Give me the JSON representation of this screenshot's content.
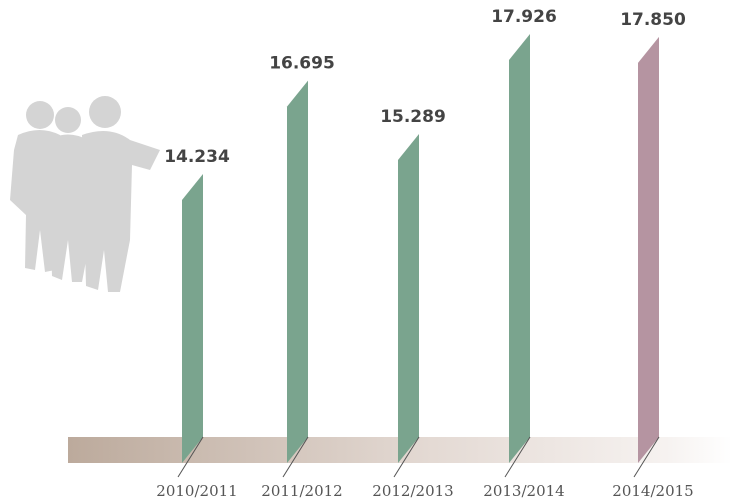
{
  "chart_data": {
    "type": "bar",
    "categories": [
      "2010/2011",
      "2011/2012",
      "2012/2013",
      "2013/2014",
      "2014/2015"
    ],
    "values": [
      14234,
      16695,
      15289,
      17926,
      17850
    ],
    "value_labels": [
      "14.234",
      "16.695",
      "15.289",
      "17.926",
      "17.850"
    ],
    "colors": [
      "#7aa48e",
      "#7aa48e",
      "#7aa48e",
      "#7aa48e",
      "#b594a1"
    ]
  }
}
